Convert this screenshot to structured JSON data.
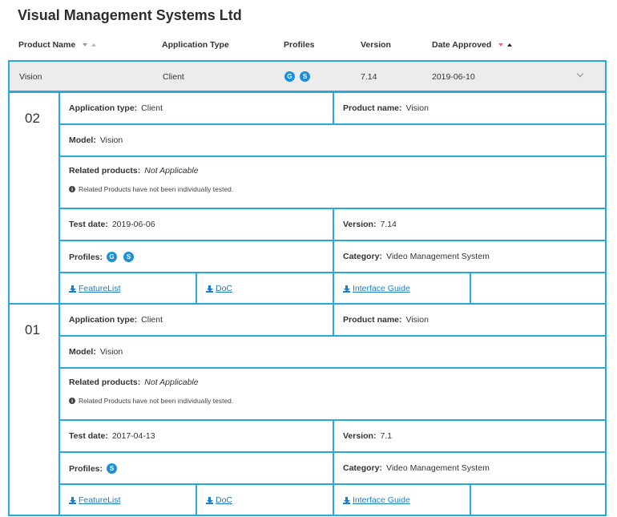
{
  "page": {
    "title": "Visual Management Systems Ltd"
  },
  "table_header": {
    "product_name": "Product Name",
    "application_type": "Application Type",
    "profiles": "Profiles",
    "version": "Version",
    "date_approved": "Date Approved"
  },
  "summary": {
    "product": "Vision",
    "application_type": "Client",
    "profiles": [
      "G",
      "S"
    ],
    "version": "7.14",
    "date_approved": "2019-06-10"
  },
  "labels": {
    "application_type": "Application type:",
    "product_name": "Product name:",
    "model": "Model:",
    "related_products": "Related products:",
    "test_date": "Test date:",
    "version": "Version:",
    "profiles": "Profiles:",
    "category": "Category:"
  },
  "versions": [
    {
      "number": "02",
      "application_type": "Client",
      "product_name": "Vision",
      "model": "Vision",
      "related_products": "Not Applicable",
      "related_note": "Related Products have not been individually tested.",
      "test_date": "2019-06-06",
      "version": "7.14",
      "profiles": [
        "G",
        "S"
      ],
      "category": "Video Management System",
      "links": {
        "featurelist": "FeatureList",
        "doc": "DoC",
        "interface_guide": "Interface Guide"
      }
    },
    {
      "number": "01",
      "application_type": "Client",
      "product_name": "Vision",
      "model": "Vision",
      "related_products": "Not Applicable",
      "related_note": "Related Products have not been individually tested.",
      "test_date": "2017-04-13",
      "version": "7.1",
      "profiles": [
        "S"
      ],
      "category": "Video Management System",
      "links": {
        "featurelist": "FeatureList",
        "doc": "DoC",
        "interface_guide": "Interface Guide"
      }
    }
  ],
  "icons": {
    "download": "download-icon",
    "info": "info-icon",
    "chevron": "chevron-down-icon"
  },
  "colors": {
    "accent_border": "#29a8e0",
    "badge": "#1d8fd6",
    "link": "#1d7fc4"
  }
}
